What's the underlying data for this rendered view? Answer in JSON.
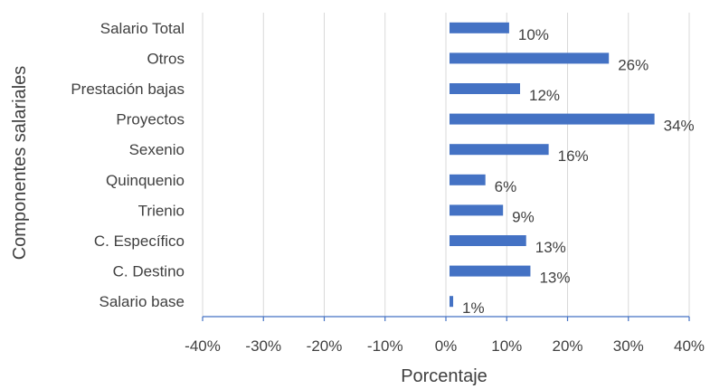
{
  "chart_data": {
    "type": "bar",
    "orientation": "horizontal",
    "title": "",
    "xlabel": "Porcentaje",
    "ylabel": "Componentes salariales",
    "xlim": [
      -40,
      40
    ],
    "x_ticks": [
      -40,
      -30,
      -20,
      -10,
      0,
      10,
      20,
      30,
      40
    ],
    "x_tick_labels": [
      "-40%",
      "-30%",
      "-20%",
      "-10%",
      "0%",
      "10%",
      "20%",
      "30%",
      "40%"
    ],
    "grid": true,
    "legend": "none",
    "bar_color": "#4472C4",
    "categories": [
      "Salario base",
      "C. Destino",
      "C. Específico",
      "Trienio",
      "Quinquenio",
      "Sexenio",
      "Proyectos",
      "Prestación bajas",
      "Otros",
      "Salario Total"
    ],
    "values": [
      0.6,
      13.3,
      12.6,
      8.8,
      5.9,
      16.3,
      33.7,
      11.6,
      26.2,
      9.8
    ],
    "data_labels": [
      "1%",
      "13%",
      "13%",
      "9%",
      "6%",
      "16%",
      "34%",
      "12%",
      "26%",
      "10%"
    ]
  }
}
